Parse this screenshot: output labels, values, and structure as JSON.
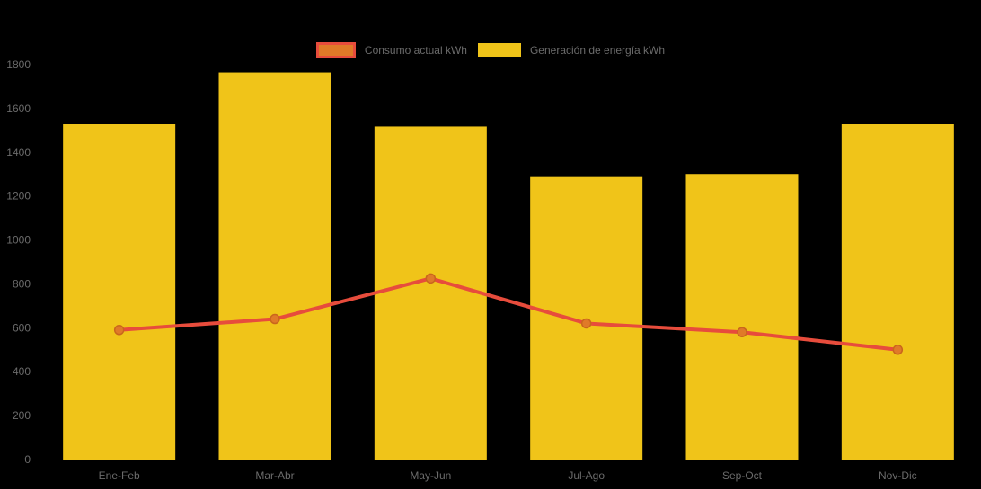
{
  "chart_data": {
    "type": "bar",
    "title": "",
    "categories": [
      "Ene-Feb",
      "Mar-Abr",
      "May-Jun",
      "Jul-Ago",
      "Sep-Oct",
      "Nov-Dic"
    ],
    "series": [
      {
        "name": "Consumo actual kWh",
        "type": "line",
        "values": [
          590,
          640,
          825,
          620,
          580,
          500
        ],
        "color": "#E74C3C",
        "marker_color": "#E07A28",
        "marker_edge_color": "#C9661C"
      },
      {
        "name": "Generación de energía kWh",
        "type": "bar",
        "values": [
          1530,
          1765,
          1520,
          1290,
          1300,
          1530
        ],
        "color": "#F0C419"
      }
    ],
    "xlabel": "",
    "ylabel": "",
    "ylim": [
      0,
      1800
    ],
    "ytick_step": 200,
    "legend_position": "top",
    "grid": false,
    "background": "#000000",
    "axis_text_color": "#6b6b6b"
  }
}
